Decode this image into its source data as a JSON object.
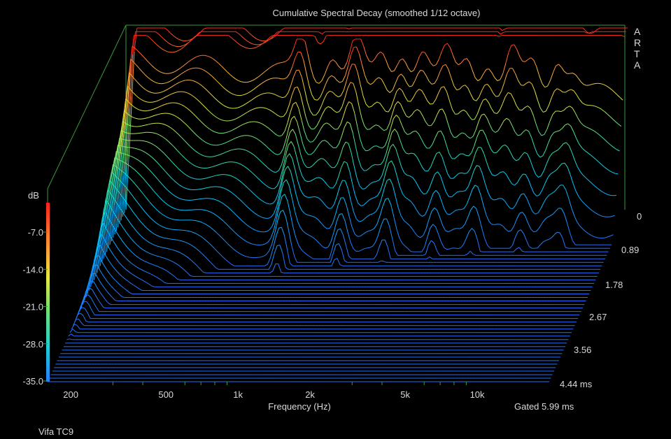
{
  "chart_data": {
    "type": "waterfall",
    "title": "Cumulative Spectral Decay (smoothed 1/12 octave)",
    "watermark": "ARTA",
    "xlabel": "Frequency (Hz)",
    "x_scale": "log",
    "xlim": [
      160,
      20000
    ],
    "x_ticks": [
      {
        "value": 200,
        "label": "200"
      },
      {
        "value": 500,
        "label": "500"
      },
      {
        "value": 1000,
        "label": "1k"
      },
      {
        "value": 2000,
        "label": "2k"
      },
      {
        "value": 5000,
        "label": "5k"
      },
      {
        "value": 10000,
        "label": "10k"
      }
    ],
    "zlabel": "dB",
    "zlim": [
      -35.0,
      0
    ],
    "z_ticks": [
      "-7.0",
      "-14.0",
      "-21.0",
      "-28.0",
      "-35.0"
    ],
    "time_axis": {
      "unit": "ms",
      "range": [
        0,
        4.44
      ],
      "ticks": [
        "0",
        "0.89",
        "1.78",
        "2.67",
        "3.56",
        "4.44 ms"
      ]
    },
    "slice_count": 50,
    "gate_label": "Gated 5.99 ms",
    "device_label": "Vifa TC9",
    "colormap": [
      "#2a6bff",
      "#00c8ff",
      "#30e0a0",
      "#d8e840",
      "#ffb040",
      "#ff3020"
    ],
    "axis_color": "#3a9a3a",
    "background": "#000000"
  }
}
